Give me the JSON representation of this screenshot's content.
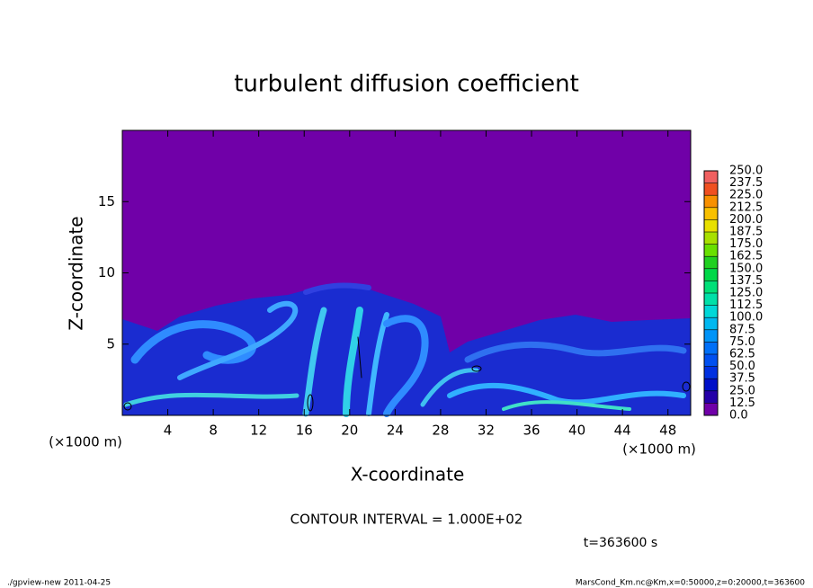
{
  "chart_data": {
    "type": "heatmap",
    "title": "turbulent diffusion coefficient",
    "xlabel": "X-coordinate",
    "ylabel": "Z-coordinate",
    "xunit": "(×1000 m)",
    "yunit": "(×1000 m)",
    "xlim": [
      0,
      50
    ],
    "ylim": [
      0,
      20
    ],
    "xticks": [
      4,
      8,
      12,
      16,
      20,
      24,
      28,
      32,
      36,
      40,
      44,
      48
    ],
    "yticks": [
      5,
      10,
      15
    ],
    "colorbar_lim": [
      0,
      250
    ],
    "colorbar_ticks": [
      {
        "value": 0,
        "label": "0.0"
      },
      {
        "value": 12.5,
        "label": "12.5"
      },
      {
        "value": 25,
        "label": "25.0"
      },
      {
        "value": 37.5,
        "label": "37.5"
      },
      {
        "value": 50,
        "label": "50.0"
      },
      {
        "value": 62.5,
        "label": "62.5"
      },
      {
        "value": 75,
        "label": "75.0"
      },
      {
        "value": 87.5,
        "label": "87.5"
      },
      {
        "value": 100,
        "label": "100.0"
      },
      {
        "value": 112.5,
        "label": "112.5"
      },
      {
        "value": 125,
        "label": "125.0"
      },
      {
        "value": 137.5,
        "label": "137.5"
      },
      {
        "value": 150,
        "label": "150.0"
      },
      {
        "value": 162.5,
        "label": "162.5"
      },
      {
        "value": 175,
        "label": "175.0"
      },
      {
        "value": 187.5,
        "label": "187.5"
      },
      {
        "value": 200,
        "label": "200.0"
      },
      {
        "value": 212.5,
        "label": "212.5"
      },
      {
        "value": 225,
        "label": "225.0"
      },
      {
        "value": 237.5,
        "label": "237.5"
      },
      {
        "value": 250,
        "label": "250.0"
      }
    ],
    "colors": [
      "#7000a8",
      "#2400a8",
      "#0010c8",
      "#0030e0",
      "#0050f0",
      "#0070f8",
      "#0094f8",
      "#00b8f0",
      "#00d8d8",
      "#00e0a8",
      "#00e078",
      "#00d848",
      "#20d020",
      "#68e000",
      "#a8e000",
      "#e8e000",
      "#f8c000",
      "#f89000",
      "#f05020",
      "#f06060"
    ],
    "annotation": "CONTOUR INTERVAL = 1.000E+02",
    "time_label": "t=363600 s",
    "footer_left": "./gpview-new   2011-04-25",
    "footer_right": "MarsCond_Km.nc@Km,x=0:50000,z=0:20000,t=363600"
  }
}
